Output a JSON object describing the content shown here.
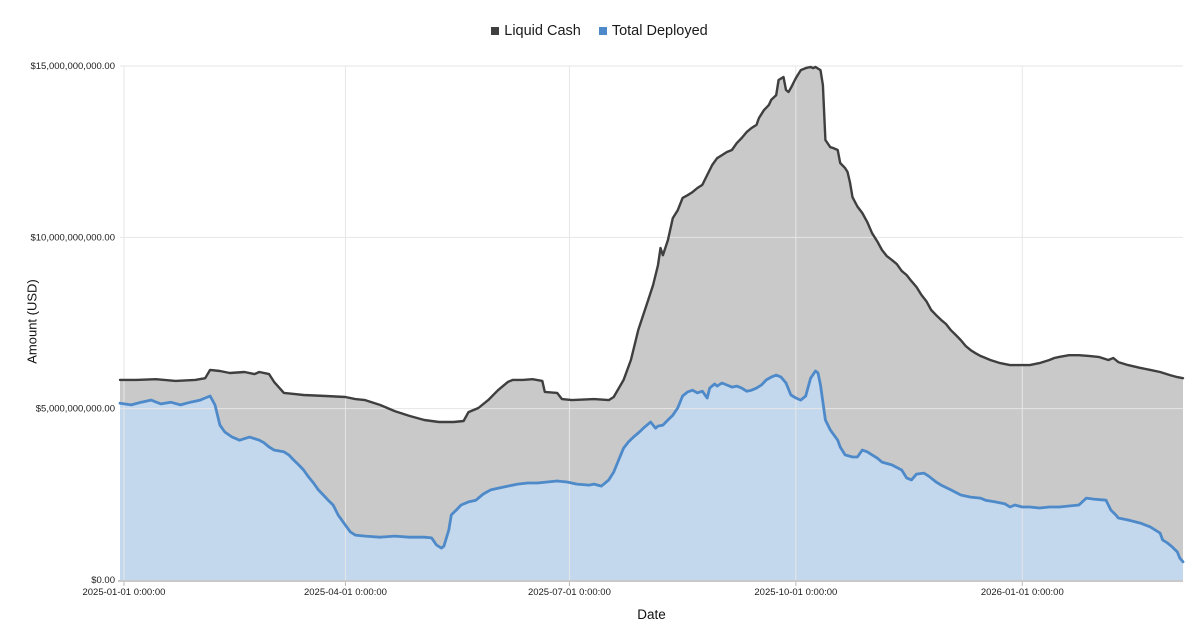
{
  "chart_data": {
    "type": "area",
    "title": "",
    "xlabel": "Date",
    "ylabel": "Amount (USD)",
    "unit": "USD",
    "value_scale": "billions of USD",
    "x_unit": "days since 2025-01-01 0:00:00",
    "x_domain_days": [
      -1.6,
      430.3
    ],
    "y_domain_billions": [
      0,
      15
    ],
    "grid": true,
    "legend_position": "top-center",
    "y_ticks": [
      {
        "value": 0,
        "label": "$0.00"
      },
      {
        "value": 5,
        "label": "$5,000,000,000.00"
      },
      {
        "value": 10,
        "label": "$10,000,000,000.00"
      },
      {
        "value": 15,
        "label": "$15,000,000,000.00"
      }
    ],
    "x_ticks": [
      {
        "day": 0,
        "label": "2025-01-01 0:00:00"
      },
      {
        "day": 90,
        "label": "2025-04-01 0:00:00"
      },
      {
        "day": 181,
        "label": "2025-07-01 0:00:00"
      },
      {
        "day": 273,
        "label": "2025-10-01 0:00:00"
      },
      {
        "day": 365,
        "label": "2026-01-01 0:00:00"
      }
    ],
    "series": [
      {
        "name": "Liquid Cash",
        "line_color": "#3f3f3f",
        "fill_color": "#c9c9c9",
        "points": [
          [
            -1.6,
            5.84
          ],
          [
            5,
            5.84
          ],
          [
            13,
            5.86
          ],
          [
            21,
            5.81
          ],
          [
            29,
            5.84
          ],
          [
            33,
            5.89
          ],
          [
            35,
            6.13
          ],
          [
            39,
            6.1
          ],
          [
            43,
            6.04
          ],
          [
            49,
            6.07
          ],
          [
            53,
            6.01
          ],
          [
            55,
            6.07
          ],
          [
            59,
            6.01
          ],
          [
            61,
            5.78
          ],
          [
            65,
            5.46
          ],
          [
            69,
            5.43
          ],
          [
            73,
            5.4
          ],
          [
            82,
            5.37
          ],
          [
            90,
            5.34
          ],
          [
            94,
            5.28
          ],
          [
            98,
            5.25
          ],
          [
            104,
            5.11
          ],
          [
            110,
            4.93
          ],
          [
            116,
            4.79
          ],
          [
            122,
            4.67
          ],
          [
            128,
            4.61
          ],
          [
            134,
            4.61
          ],
          [
            138,
            4.64
          ],
          [
            140,
            4.9
          ],
          [
            144,
            5.02
          ],
          [
            148,
            5.25
          ],
          [
            152,
            5.54
          ],
          [
            156,
            5.78
          ],
          [
            158,
            5.84
          ],
          [
            162,
            5.84
          ],
          [
            166,
            5.86
          ],
          [
            170,
            5.81
          ],
          [
            171,
            5.49
          ],
          [
            176,
            5.46
          ],
          [
            178,
            5.28
          ],
          [
            182,
            5.25
          ],
          [
            191,
            5.28
          ],
          [
            197,
            5.25
          ],
          [
            199,
            5.34
          ],
          [
            203,
            5.84
          ],
          [
            206,
            6.42
          ],
          [
            209,
            7.3
          ],
          [
            213,
            8.17
          ],
          [
            215,
            8.61
          ],
          [
            217,
            9.19
          ],
          [
            218,
            9.69
          ],
          [
            219,
            9.48
          ],
          [
            221,
            9.92
          ],
          [
            223,
            10.56
          ],
          [
            225,
            10.79
          ],
          [
            227,
            11.15
          ],
          [
            229,
            11.23
          ],
          [
            231,
            11.32
          ],
          [
            233,
            11.44
          ],
          [
            235,
            11.53
          ],
          [
            237,
            11.82
          ],
          [
            239,
            12.11
          ],
          [
            241,
            12.31
          ],
          [
            243,
            12.4
          ],
          [
            245,
            12.49
          ],
          [
            247,
            12.55
          ],
          [
            249,
            12.75
          ],
          [
            251,
            12.9
          ],
          [
            253,
            13.07
          ],
          [
            255,
            13.19
          ],
          [
            257,
            13.28
          ],
          [
            258,
            13.48
          ],
          [
            260,
            13.71
          ],
          [
            262,
            13.86
          ],
          [
            263,
            14.01
          ],
          [
            265,
            14.15
          ],
          [
            266,
            14.59
          ],
          [
            268,
            14.68
          ],
          [
            269,
            14.3
          ],
          [
            270,
            14.24
          ],
          [
            271,
            14.36
          ],
          [
            273,
            14.65
          ],
          [
            275,
            14.88
          ],
          [
            277,
            14.94
          ],
          [
            279,
            14.97
          ],
          [
            280,
            14.94
          ],
          [
            281,
            14.97
          ],
          [
            283,
            14.88
          ],
          [
            284,
            14.44
          ],
          [
            285,
            12.84
          ],
          [
            287,
            12.63
          ],
          [
            288,
            12.61
          ],
          [
            290,
            12.55
          ],
          [
            291,
            12.17
          ],
          [
            293,
            12.02
          ],
          [
            294,
            11.91
          ],
          [
            295,
            11.6
          ],
          [
            296,
            11.17
          ],
          [
            298,
            10.9
          ],
          [
            300,
            10.71
          ],
          [
            302,
            10.45
          ],
          [
            304,
            10.12
          ],
          [
            306,
            9.89
          ],
          [
            308,
            9.63
          ],
          [
            310,
            9.45
          ],
          [
            312,
            9.34
          ],
          [
            314,
            9.22
          ],
          [
            316,
            9.02
          ],
          [
            318,
            8.9
          ],
          [
            320,
            8.72
          ],
          [
            322,
            8.55
          ],
          [
            324,
            8.32
          ],
          [
            326,
            8.14
          ],
          [
            328,
            7.88
          ],
          [
            330,
            7.73
          ],
          [
            332,
            7.59
          ],
          [
            334,
            7.47
          ],
          [
            336,
            7.29
          ],
          [
            338,
            7.15
          ],
          [
            340,
            7.0
          ],
          [
            342,
            6.83
          ],
          [
            344,
            6.71
          ],
          [
            346,
            6.62
          ],
          [
            348,
            6.54
          ],
          [
            352,
            6.42
          ],
          [
            356,
            6.33
          ],
          [
            360,
            6.27
          ],
          [
            365,
            6.27
          ],
          [
            368,
            6.27
          ],
          [
            372,
            6.33
          ],
          [
            376,
            6.42
          ],
          [
            378,
            6.48
          ],
          [
            380,
            6.51
          ],
          [
            384,
            6.56
          ],
          [
            388,
            6.56
          ],
          [
            392,
            6.54
          ],
          [
            396,
            6.51
          ],
          [
            400,
            6.42
          ],
          [
            402,
            6.48
          ],
          [
            404,
            6.36
          ],
          [
            408,
            6.27
          ],
          [
            413,
            6.19
          ],
          [
            417,
            6.13
          ],
          [
            421,
            6.07
          ],
          [
            425,
            5.98
          ],
          [
            428,
            5.92
          ],
          [
            430.3,
            5.89
          ]
        ]
      },
      {
        "name": "Total Deployed",
        "line_color": "#4e8ac9",
        "fill_color": "#c3d7ed",
        "points": [
          [
            -1.6,
            5.16
          ],
          [
            3,
            5.11
          ],
          [
            7,
            5.19
          ],
          [
            11,
            5.25
          ],
          [
            15,
            5.14
          ],
          [
            19,
            5.19
          ],
          [
            23,
            5.11
          ],
          [
            27,
            5.19
          ],
          [
            31,
            5.25
          ],
          [
            33,
            5.31
          ],
          [
            35,
            5.37
          ],
          [
            37,
            5.11
          ],
          [
            39,
            4.52
          ],
          [
            41,
            4.32
          ],
          [
            44,
            4.17
          ],
          [
            47,
            4.08
          ],
          [
            51,
            4.17
          ],
          [
            55,
            4.08
          ],
          [
            57,
            4.0
          ],
          [
            59,
            3.88
          ],
          [
            61,
            3.79
          ],
          [
            65,
            3.74
          ],
          [
            67,
            3.65
          ],
          [
            69,
            3.5
          ],
          [
            71,
            3.36
          ],
          [
            73,
            3.21
          ],
          [
            75,
            3.01
          ],
          [
            77,
            2.83
          ],
          [
            79,
            2.63
          ],
          [
            81,
            2.48
          ],
          [
            83,
            2.33
          ],
          [
            85,
            2.19
          ],
          [
            87,
            1.9
          ],
          [
            90,
            1.6
          ],
          [
            92,
            1.4
          ],
          [
            94,
            1.31
          ],
          [
            98,
            1.28
          ],
          [
            104,
            1.25
          ],
          [
            110,
            1.28
          ],
          [
            116,
            1.25
          ],
          [
            122,
            1.25
          ],
          [
            125,
            1.23
          ],
          [
            127,
            1.02
          ],
          [
            129,
            0.93
          ],
          [
            130,
            0.99
          ],
          [
            132,
            1.46
          ],
          [
            133,
            1.9
          ],
          [
            135,
            2.04
          ],
          [
            137,
            2.19
          ],
          [
            140,
            2.28
          ],
          [
            143,
            2.33
          ],
          [
            146,
            2.51
          ],
          [
            149,
            2.63
          ],
          [
            152,
            2.68
          ],
          [
            156,
            2.74
          ],
          [
            160,
            2.8
          ],
          [
            164,
            2.83
          ],
          [
            168,
            2.83
          ],
          [
            172,
            2.86
          ],
          [
            176,
            2.89
          ],
          [
            180,
            2.86
          ],
          [
            184,
            2.8
          ],
          [
            189,
            2.77
          ],
          [
            191,
            2.8
          ],
          [
            194,
            2.74
          ],
          [
            197,
            2.92
          ],
          [
            199,
            3.15
          ],
          [
            201,
            3.5
          ],
          [
            203,
            3.85
          ],
          [
            205,
            4.03
          ],
          [
            207,
            4.17
          ],
          [
            209,
            4.29
          ],
          [
            211,
            4.43
          ],
          [
            213,
            4.55
          ],
          [
            214,
            4.61
          ],
          [
            216,
            4.43
          ],
          [
            217,
            4.49
          ],
          [
            219,
            4.52
          ],
          [
            221,
            4.67
          ],
          [
            223,
            4.81
          ],
          [
            225,
            5.02
          ],
          [
            227,
            5.37
          ],
          [
            229,
            5.49
          ],
          [
            231,
            5.54
          ],
          [
            233,
            5.46
          ],
          [
            235,
            5.51
          ],
          [
            237,
            5.31
          ],
          [
            238,
            5.6
          ],
          [
            240,
            5.72
          ],
          [
            241,
            5.66
          ],
          [
            243,
            5.75
          ],
          [
            245,
            5.69
          ],
          [
            247,
            5.63
          ],
          [
            249,
            5.66
          ],
          [
            251,
            5.6
          ],
          [
            253,
            5.51
          ],
          [
            255,
            5.54
          ],
          [
            257,
            5.6
          ],
          [
            259,
            5.69
          ],
          [
            261,
            5.84
          ],
          [
            263,
            5.92
          ],
          [
            265,
            5.98
          ],
          [
            267,
            5.92
          ],
          [
            269,
            5.75
          ],
          [
            271,
            5.4
          ],
          [
            273,
            5.31
          ],
          [
            275,
            5.25
          ],
          [
            277,
            5.37
          ],
          [
            279,
            5.89
          ],
          [
            281,
            6.1
          ],
          [
            282,
            6.04
          ],
          [
            283,
            5.69
          ],
          [
            284,
            5.19
          ],
          [
            285,
            4.67
          ],
          [
            287,
            4.38
          ],
          [
            290,
            4.08
          ],
          [
            291,
            3.88
          ],
          [
            293,
            3.65
          ],
          [
            296,
            3.59
          ],
          [
            298,
            3.59
          ],
          [
            300,
            3.79
          ],
          [
            302,
            3.74
          ],
          [
            304,
            3.65
          ],
          [
            306,
            3.56
          ],
          [
            308,
            3.44
          ],
          [
            312,
            3.36
          ],
          [
            316,
            3.21
          ],
          [
            318,
            2.98
          ],
          [
            320,
            2.92
          ],
          [
            322,
            3.09
          ],
          [
            325,
            3.12
          ],
          [
            327,
            3.03
          ],
          [
            330,
            2.86
          ],
          [
            332,
            2.77
          ],
          [
            336,
            2.63
          ],
          [
            340,
            2.48
          ],
          [
            344,
            2.42
          ],
          [
            348,
            2.39
          ],
          [
            350,
            2.33
          ],
          [
            354,
            2.28
          ],
          [
            358,
            2.22
          ],
          [
            360,
            2.13
          ],
          [
            362,
            2.19
          ],
          [
            365,
            2.13
          ],
          [
            368,
            2.13
          ],
          [
            372,
            2.1
          ],
          [
            376,
            2.13
          ],
          [
            380,
            2.13
          ],
          [
            384,
            2.16
          ],
          [
            388,
            2.19
          ],
          [
            391,
            2.39
          ],
          [
            394,
            2.36
          ],
          [
            399,
            2.33
          ],
          [
            401,
            2.04
          ],
          [
            403,
            1.9
          ],
          [
            404,
            1.81
          ],
          [
            408,
            1.75
          ],
          [
            413,
            1.66
          ],
          [
            417,
            1.55
          ],
          [
            419,
            1.46
          ],
          [
            421,
            1.37
          ],
          [
            422,
            1.17
          ],
          [
            424,
            1.08
          ],
          [
            426,
            0.96
          ],
          [
            428,
            0.82
          ],
          [
            429,
            0.64
          ],
          [
            430.3,
            0.53
          ]
        ]
      }
    ]
  }
}
